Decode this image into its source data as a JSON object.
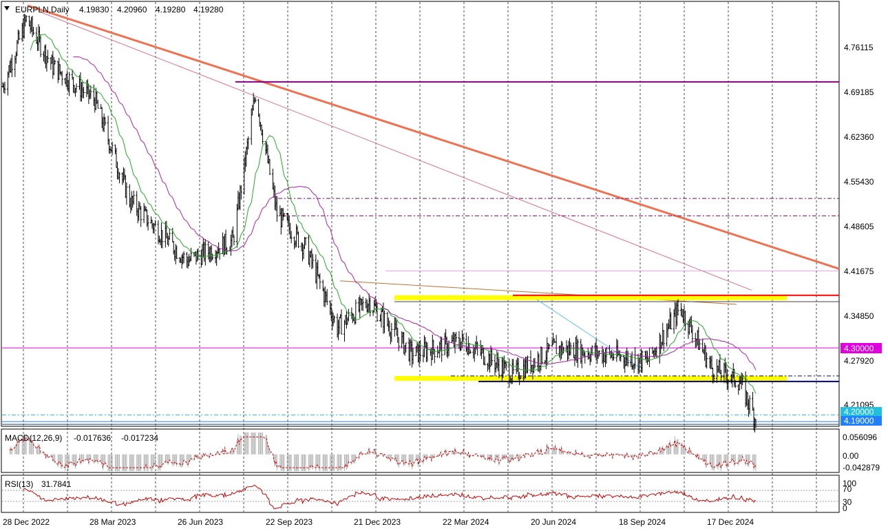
{
  "header": {
    "symbol": "EURPLN,Daily",
    "open": "4.19830",
    "high": "4.20960",
    "low": "4.19280",
    "close": "4.19280"
  },
  "price_axis": {
    "ticks": [
      "4.76115",
      "4.69185",
      "4.62360",
      "4.55430",
      "4.48605",
      "4.41675",
      "4.34850",
      "4.27920",
      "4.21095"
    ],
    "badges": [
      {
        "text": "4.30000",
        "value": 4.3,
        "color": "#e000e0"
      },
      {
        "text": "4.20000",
        "value": 4.2,
        "color": "#20c0e0"
      },
      {
        "text": "4.19000",
        "value": 4.19,
        "color": "#2080ff"
      }
    ]
  },
  "macd": {
    "label": "MACD(12,26,9)",
    "value1": "-0.017636",
    "value2": "-0.017234",
    "ticks": [
      "0.056096",
      "0.00",
      "-0.042879"
    ]
  },
  "rsi": {
    "label": "RSI(13)",
    "value": "31.7841",
    "ticks": [
      "100",
      "70",
      "30",
      "0"
    ]
  },
  "time_axis": [
    "28 Dec 2022",
    "28 Mar 2023",
    "26 Jun 2023",
    "22 Sep 2023",
    "21 Dec 2023",
    "22 Mar 2024",
    "20 Jun 2024",
    "18 Sep 2024",
    "17 Dec 2024"
  ],
  "colors": {
    "price_bar": "#000000",
    "ma_fast": "#22aa22",
    "ma_slow": "#aa22aa",
    "macd_signal": "#cc0000",
    "macd_hist": "#b0b0b0",
    "rsi_line": "#cc0000",
    "trend_main": "#f07050",
    "zone_yellow": "#ffff00",
    "resistance_red": "#ff0000",
    "support_navy": "#000080"
  },
  "chart_data": {
    "type": "line",
    "title": "EURPLN,Daily",
    "x": [
      "2022-12-28",
      "2023-01-20",
      "2023-02-15",
      "2023-03-28",
      "2023-05-01",
      "2023-06-26",
      "2023-08-10",
      "2023-09-01",
      "2023-09-22",
      "2023-10-20",
      "2023-11-20",
      "2023-12-21",
      "2024-02-01",
      "2024-03-22",
      "2024-05-10",
      "2024-06-20",
      "2024-08-10",
      "2024-09-18",
      "2024-10-20",
      "2024-11-20",
      "2024-12-17",
      "2025-01-02"
    ],
    "series": [
      {
        "name": "EURPLN",
        "values": [
          4.69,
          4.79,
          4.72,
          4.67,
          4.52,
          4.43,
          4.46,
          4.68,
          4.5,
          4.45,
          4.33,
          4.37,
          4.29,
          4.31,
          4.26,
          4.3,
          4.29,
          4.28,
          4.36,
          4.27,
          4.25,
          4.193
        ]
      }
    ],
    "ylim": [
      4.185,
      4.815
    ],
    "levels": [
      4.3754,
      4.372,
      4.255,
      4.254,
      4.3,
      4.2,
      4.19,
      4.497,
      4.523,
      4.697
    ],
    "macd": {
      "ylim": [
        -0.042879,
        0.056096
      ],
      "signal_last": -0.017234,
      "main_last": -0.017636
    },
    "rsi": {
      "ylim": [
        0,
        100
      ],
      "levels": [
        70,
        30
      ],
      "last": 31.7841
    }
  }
}
